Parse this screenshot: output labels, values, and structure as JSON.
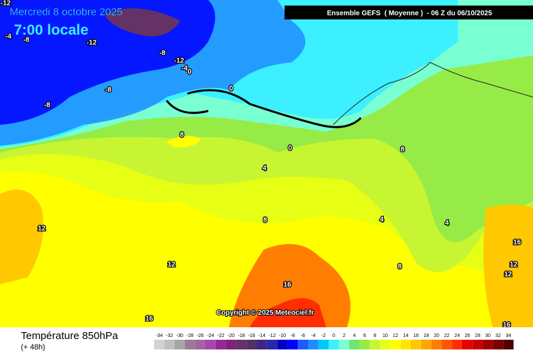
{
  "header": {
    "date": "Mercredi 8 octobre 2025",
    "time": "7:00 locale",
    "run": "Ensemble GEFS  ( Moyenne )  - 06 Z du 06/10/2025"
  },
  "copyright": "Copyright © 2025 Meteociel.fr",
  "footer": {
    "title": "Température 850hPa",
    "lead": "(+ 48h)"
  },
  "contour_labels": [
    -12,
    -4,
    -8,
    -12,
    -8,
    -12,
    -4,
    0,
    -8,
    -8,
    0,
    8,
    0,
    4,
    8,
    12,
    8,
    4,
    4,
    16,
    12,
    8,
    12,
    12,
    16,
    16,
    16
  ],
  "legend": {
    "ticks": [
      -34,
      -32,
      -30,
      -28,
      -26,
      -24,
      -22,
      -20,
      -18,
      -16,
      -14,
      -12,
      -10,
      -8,
      -6,
      -4,
      -2,
      0,
      2,
      4,
      6,
      8,
      10,
      12,
      14,
      16,
      18,
      20,
      22,
      24,
      26,
      28,
      30,
      32,
      34
    ],
    "colors": [
      "#d2d2d2",
      "#bebebe",
      "#a5a5a5",
      "#9a7a9a",
      "#a064a0",
      "#aa46aa",
      "#962896",
      "#7d237d",
      "#643264",
      "#503264",
      "#3c2882",
      "#2828aa",
      "#0000c8",
      "#0000ff",
      "#1e5aff",
      "#1e8cff",
      "#00c8ff",
      "#3cf0ff",
      "#78ffd2",
      "#6ee66e",
      "#96eb46",
      "#c8f532",
      "#e6ff14",
      "#ffff00",
      "#ffe600",
      "#ffc800",
      "#ffa500",
      "#ff7d00",
      "#ff5500",
      "#ff2d00",
      "#e60000",
      "#c80000",
      "#a00000",
      "#780000",
      "#500000"
    ]
  }
}
